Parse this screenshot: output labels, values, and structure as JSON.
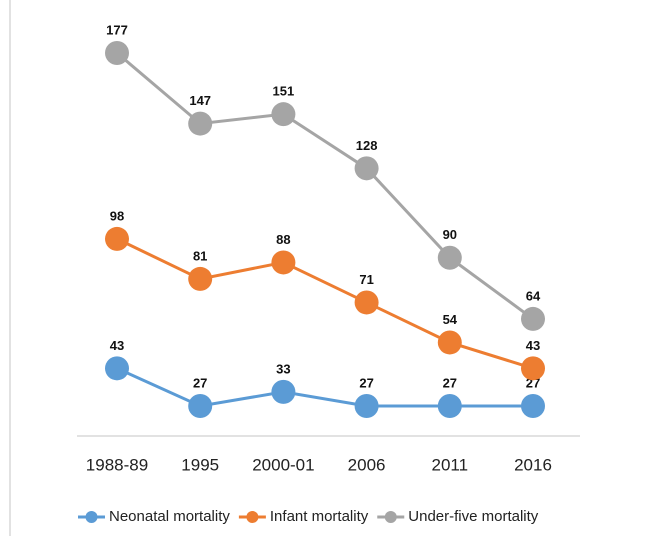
{
  "chart_data": {
    "type": "line",
    "categories": [
      "1988-89",
      "1995",
      "2000-01",
      "2006",
      "2011",
      "2016"
    ],
    "series": [
      {
        "name": "Neonatal mortality",
        "color": "#5b9bd5",
        "values": [
          43,
          27,
          33,
          27,
          27,
          27
        ]
      },
      {
        "name": "Infant mortality",
        "color": "#ed7d31",
        "values": [
          98,
          81,
          88,
          71,
          54,
          43
        ]
      },
      {
        "name": "Under-five mortality",
        "color": "#a5a5a5",
        "values": [
          177,
          147,
          151,
          128,
          90,
          64
        ]
      }
    ],
    "legend": "bottom"
  }
}
